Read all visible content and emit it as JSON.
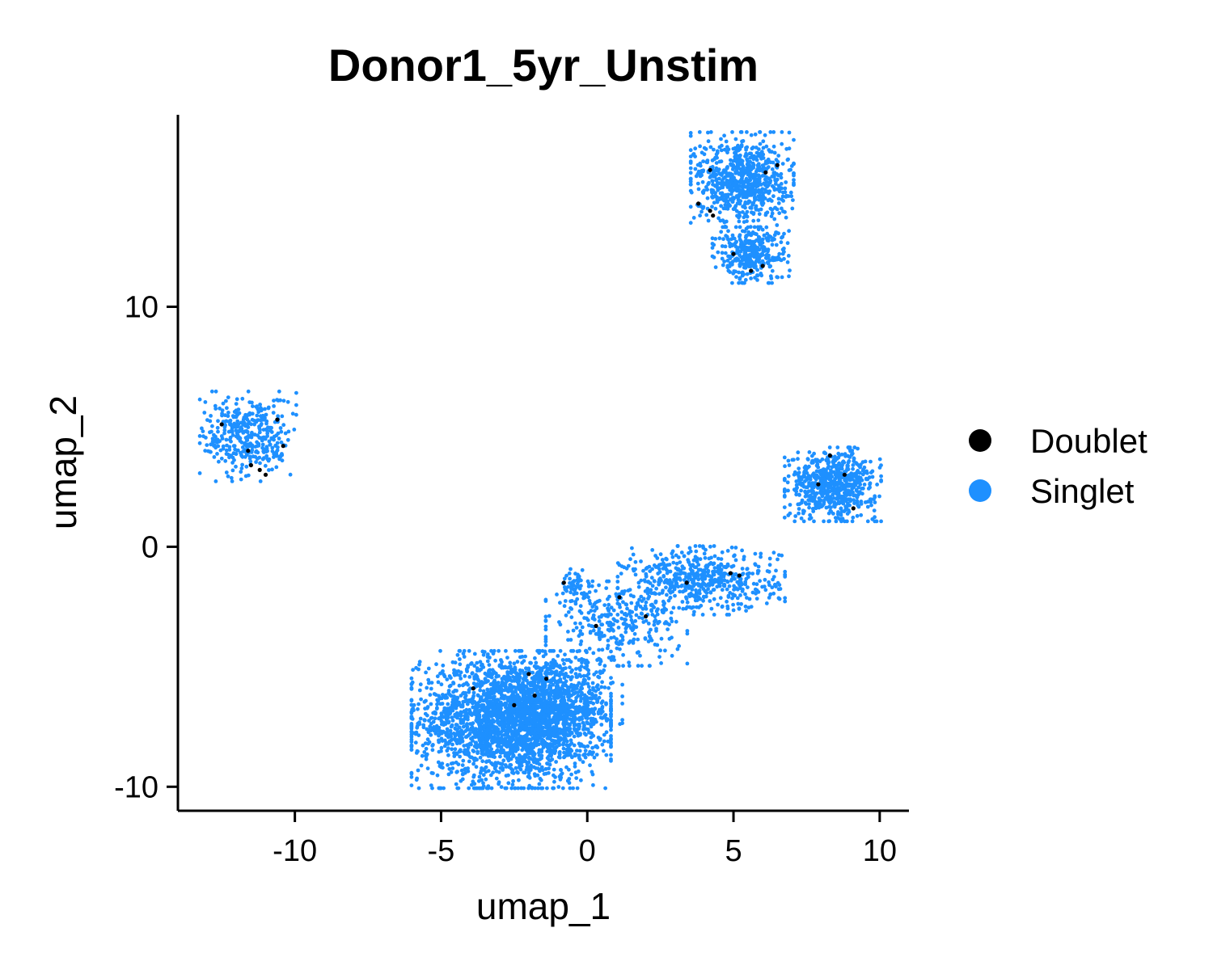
{
  "chart_data": {
    "type": "scatter",
    "title": "Donor1_5yr_Unstim",
    "xlabel": "umap_1",
    "ylabel": "umap_2",
    "xlim": [
      -14,
      11
    ],
    "ylim": [
      -11,
      18
    ],
    "x_ticks": [
      -10,
      -5,
      0,
      5,
      10
    ],
    "x_tick_labels": [
      "-10",
      "-5",
      "0",
      "5",
      "10"
    ],
    "y_ticks": [
      -10,
      0,
      10
    ],
    "y_tick_labels": [
      "-10",
      "0",
      "10"
    ],
    "grid": false,
    "legend_position": "right",
    "series": [
      {
        "name": "Singlet",
        "color": "#1E90FF",
        "clusters": [
          {
            "center": [
              -2.6,
              -7.2
            ],
            "spread": [
              1.55,
              1.3
            ],
            "count": 2600
          },
          {
            "center": [
              -1.0,
              -6.7
            ],
            "spread": [
              1.0,
              0.9
            ],
            "count": 500
          },
          {
            "center": [
              1.0,
              -3.2
            ],
            "spread": [
              1.1,
              0.8
            ],
            "count": 300
          },
          {
            "center": [
              3.9,
              -1.4
            ],
            "spread": [
              1.3,
              0.65
            ],
            "count": 550
          },
          {
            "center": [
              -0.4,
              -1.7
            ],
            "spread": [
              0.3,
              0.35
            ],
            "count": 60
          },
          {
            "center": [
              8.4,
              2.6
            ],
            "spread": [
              0.75,
              0.7
            ],
            "count": 650
          },
          {
            "center": [
              5.3,
              15.3
            ],
            "spread": [
              0.8,
              0.9
            ],
            "count": 750
          },
          {
            "center": [
              5.6,
              12.2
            ],
            "spread": [
              0.6,
              0.55
            ],
            "count": 350
          },
          {
            "center": [
              -11.6,
              4.6
            ],
            "spread": [
              0.75,
              0.85
            ],
            "count": 380
          }
        ]
      },
      {
        "name": "Doublet",
        "color": "#000000",
        "points": [
          [
            -3.9,
            -5.9
          ],
          [
            -2.0,
            -5.3
          ],
          [
            -1.4,
            -5.5
          ],
          [
            -2.5,
            -6.6
          ],
          [
            -1.8,
            -6.2
          ],
          [
            0.3,
            -3.3
          ],
          [
            1.1,
            -2.1
          ],
          [
            2.0,
            -2.9
          ],
          [
            3.4,
            -1.5
          ],
          [
            4.9,
            -1.1
          ],
          [
            5.2,
            -1.2
          ],
          [
            -0.8,
            -1.5
          ],
          [
            7.9,
            2.6
          ],
          [
            8.8,
            3.0
          ],
          [
            9.1,
            1.6
          ],
          [
            8.3,
            3.8
          ],
          [
            4.3,
            13.8
          ],
          [
            4.2,
            14.0
          ],
          [
            3.8,
            14.3
          ],
          [
            6.0,
            11.7
          ],
          [
            5.6,
            11.5
          ],
          [
            6.1,
            15.6
          ],
          [
            6.5,
            15.9
          ],
          [
            4.2,
            15.7
          ],
          [
            5.0,
            12.2
          ],
          [
            -11.2,
            3.2
          ],
          [
            -11.5,
            3.4
          ],
          [
            -10.4,
            4.2
          ],
          [
            -12.5,
            5.1
          ],
          [
            -11.6,
            4.0
          ],
          [
            -10.6,
            5.3
          ],
          [
            -11.0,
            3.0
          ]
        ]
      }
    ]
  }
}
